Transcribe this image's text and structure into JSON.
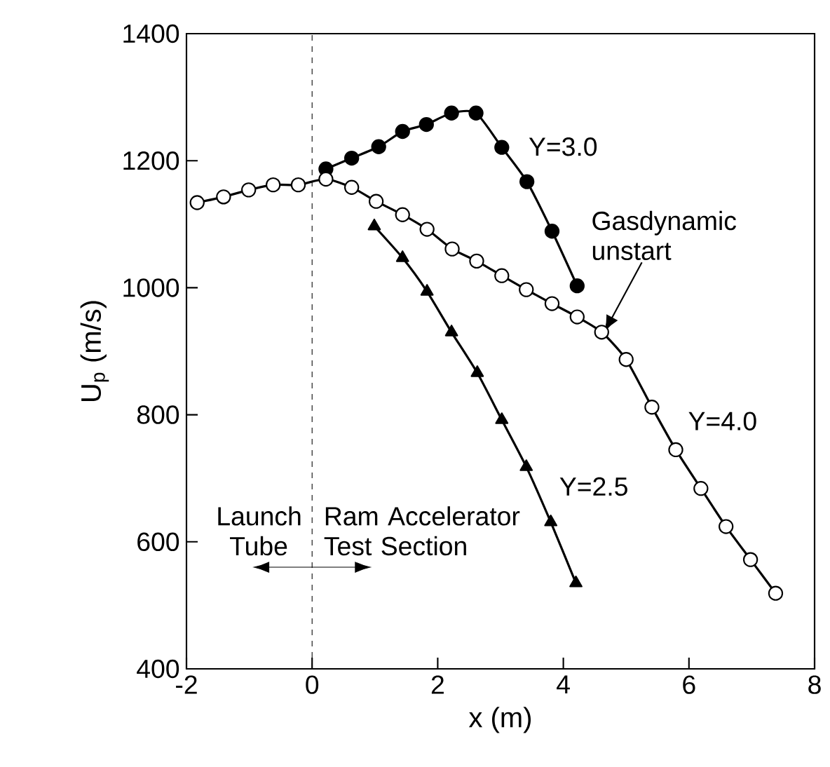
{
  "chart_data": {
    "type": "line",
    "xlabel": "x (m)",
    "ylabel": "U$_{p}$ (m/s)",
    "xlim": [
      -2,
      8
    ],
    "ylim": [
      400,
      1400
    ],
    "xticks": [
      -2,
      0,
      2,
      4,
      6,
      8
    ],
    "yticks": [
      400,
      600,
      800,
      1000,
      1200,
      1400
    ],
    "grid": false,
    "line_style": "solid",
    "series": [
      {
        "name": "Y=3.0",
        "color": "#000000",
        "marker": "circle",
        "x": [
          0.22,
          0.63,
          1.06,
          1.44,
          1.82,
          2.22,
          2.61,
          3.02,
          3.42,
          3.82,
          4.22
        ],
        "values": [
          1187,
          1204,
          1222,
          1246,
          1257,
          1275,
          1275,
          1221,
          1167,
          1089,
          1003
        ]
      },
      {
        "name": "Y=4.0",
        "color": "#000000",
        "marker": "circle",
        "x": [
          -1.83,
          -1.41,
          -1.01,
          -0.62,
          -0.22,
          0.22,
          0.63,
          1.02,
          1.44,
          1.83,
          2.23,
          2.62,
          3.02,
          3.41,
          3.82,
          4.22,
          4.61,
          5.0,
          5.41,
          5.79,
          6.19,
          6.59,
          6.98,
          7.38
        ],
        "values": [
          1134,
          1143,
          1154,
          1162,
          1162,
          1171,
          1158,
          1136,
          1115,
          1092,
          1061,
          1042,
          1019,
          997,
          975,
          954,
          930,
          887,
          812,
          745,
          684,
          624,
          572,
          519
        ]
      },
      {
        "name": "Y=2.5",
        "color": "#000000",
        "marker": "triangle",
        "x": [
          0.99,
          1.44,
          1.83,
          2.22,
          2.63,
          3.02,
          3.41,
          3.8,
          4.2
        ],
        "values": [
          1097,
          1047,
          994,
          930,
          866,
          792,
          718,
          631,
          535
        ]
      }
    ],
    "ref_lines": [
      {
        "axis": "x",
        "value": 0,
        "line_style": "dashed"
      }
    ],
    "annotations": [
      {
        "text": "Gasdynamic unstart",
        "x": 4.65,
        "y": 930
      },
      "Launch Tube",
      "Ram Accelerator Test Section"
    ]
  }
}
